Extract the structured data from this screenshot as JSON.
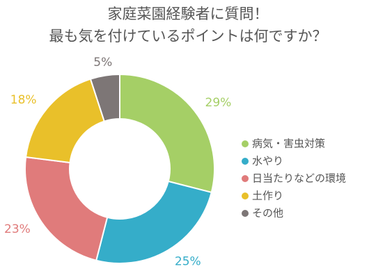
{
  "chart_data": {
    "type": "pie",
    "title_lines": [
      "家庭菜園経験者に質問！",
      "最も気を付けているポイントは何ですか？"
    ],
    "slices": [
      {
        "label": "病気・害虫対策",
        "value": 29,
        "display": "29%",
        "color": "#a5cf66"
      },
      {
        "label": "水やり",
        "value": 25,
        "display": "25%",
        "color": "#35adc9"
      },
      {
        "label": "日当たりなどの環境",
        "value": 23,
        "display": "23%",
        "color": "#e07b7b"
      },
      {
        "label": "土作り",
        "value": 18,
        "display": "18%",
        "color": "#e9c02a"
      },
      {
        "label": "その他",
        "value": 5,
        "display": "5%",
        "color": "#7d7676"
      }
    ],
    "donut": true,
    "legend_position": "right"
  }
}
